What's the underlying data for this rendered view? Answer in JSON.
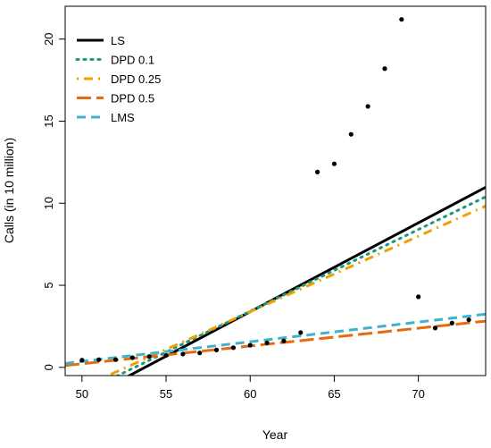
{
  "chart_data": {
    "type": "scatter",
    "xlabel": "Year",
    "ylabel": "Calls (in 10 million)",
    "xlim": [
      49,
      74
    ],
    "ylim": [
      -0.5,
      22
    ],
    "xticks": [
      50,
      55,
      60,
      65,
      70
    ],
    "yticks": [
      0,
      5,
      10,
      15,
      20
    ],
    "grid": false,
    "legend_position": "top-left",
    "points": {
      "x": [
        50,
        51,
        52,
        53,
        54,
        55,
        56,
        57,
        58,
        59,
        60,
        61,
        62,
        63,
        64,
        65,
        66,
        67,
        68,
        69,
        70,
        71,
        72,
        73
      ],
      "y": [
        0.44,
        0.47,
        0.47,
        0.59,
        0.66,
        0.73,
        0.81,
        0.88,
        1.06,
        1.2,
        1.35,
        1.49,
        1.61,
        2.12,
        11.9,
        12.4,
        14.2,
        15.9,
        18.2,
        21.2,
        4.3,
        2.4,
        2.7,
        2.9
      ]
    },
    "series": [
      {
        "name": "LS",
        "color": "#000000",
        "dash": "solid",
        "x": [
          49,
          74
        ],
        "y": [
          -2.57,
          10.97
        ]
      },
      {
        "name": "DPD 0.1",
        "color": "#1a9a7a",
        "dash": "dotted",
        "x": [
          49,
          74
        ],
        "y": [
          -2.06,
          10.39
        ]
      },
      {
        "name": "DPD 0.25",
        "color": "#f0a000",
        "dash": "dotdash",
        "x": [
          49,
          74
        ],
        "y": [
          -1.67,
          9.83
        ]
      },
      {
        "name": "DPD 0.5",
        "color": "#e66a10",
        "dash": "longdash",
        "x": [
          49,
          74
        ],
        "y": [
          0.11,
          2.82
        ]
      },
      {
        "name": "LMS",
        "color": "#3fb2cc",
        "dash": "dashed",
        "x": [
          49,
          74
        ],
        "y": [
          0.24,
          3.24
        ]
      }
    ]
  }
}
